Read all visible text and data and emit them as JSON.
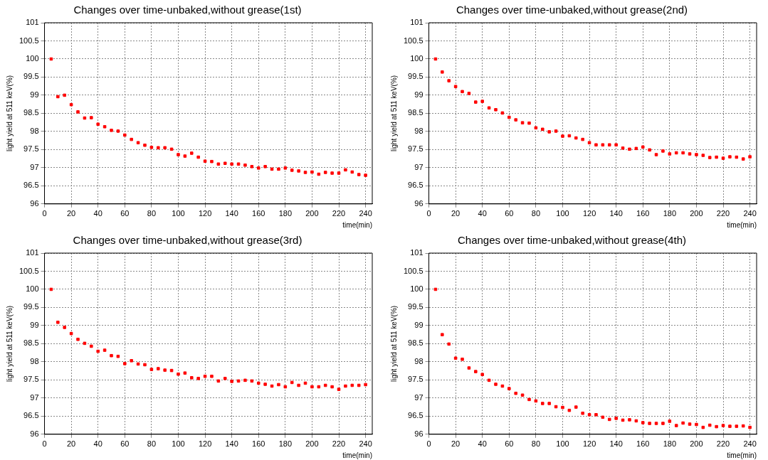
{
  "chart_data": [
    {
      "type": "scatter",
      "title": "Changes over time-unbaked,without grease(1st)",
      "xlabel": "time(min)",
      "ylabel": "light yield at 511 keV(%)",
      "xlim": [
        0,
        245
      ],
      "ylim": [
        96,
        101
      ],
      "xticks": [
        0,
        20,
        40,
        60,
        80,
        100,
        120,
        140,
        160,
        180,
        200,
        220,
        240
      ],
      "yticks": [
        96,
        96.5,
        97,
        97.5,
        98,
        98.5,
        99,
        99.5,
        100,
        100.5,
        101
      ],
      "grid": true,
      "legend": false,
      "marker": "square",
      "x": [
        5,
        10,
        15,
        20,
        25,
        30,
        35,
        40,
        45,
        50,
        55,
        60,
        65,
        70,
        75,
        80,
        85,
        90,
        95,
        100,
        105,
        110,
        115,
        120,
        125,
        130,
        135,
        140,
        145,
        150,
        155,
        160,
        165,
        170,
        175,
        180,
        185,
        190,
        195,
        200,
        205,
        210,
        215,
        220,
        225,
        230,
        235,
        240
      ],
      "series": [
        {
          "color": "#ff0000",
          "values": [
            100,
            98.96,
            99,
            98.74,
            98.54,
            98.37,
            98.38,
            98.2,
            98.13,
            98.03,
            98.01,
            97.9,
            97.78,
            97.69,
            97.62,
            97.56,
            97.55,
            97.55,
            97.51,
            97.36,
            97.32,
            97.4,
            97.29,
            97.18,
            97.17,
            97.1,
            97.12,
            97.1,
            97.1,
            97.07,
            97.03,
            96.99,
            97.03,
            96.96,
            96.96,
            96.99,
            96.93,
            96.91,
            96.87,
            96.88,
            96.82,
            96.87,
            96.85,
            96.85,
            96.94,
            96.88,
            96.81,
            96.79
          ]
        }
      ]
    },
    {
      "type": "scatter",
      "title": "Changes over time-unbaked,without grease(2nd)",
      "xlabel": "time(min)",
      "ylabel": "light yield at 511 keV(%)",
      "xlim": [
        0,
        245
      ],
      "ylim": [
        96,
        101
      ],
      "xticks": [
        0,
        20,
        40,
        60,
        80,
        100,
        120,
        140,
        160,
        180,
        200,
        220,
        240
      ],
      "yticks": [
        96,
        96.5,
        97,
        97.5,
        98,
        98.5,
        99,
        99.5,
        100,
        100.5,
        101
      ],
      "grid": true,
      "legend": false,
      "marker": "square",
      "x": [
        5,
        10,
        15,
        20,
        25,
        30,
        35,
        40,
        45,
        50,
        55,
        60,
        65,
        70,
        75,
        80,
        85,
        90,
        95,
        100,
        105,
        110,
        115,
        120,
        125,
        130,
        135,
        140,
        145,
        150,
        155,
        160,
        165,
        170,
        175,
        180,
        185,
        190,
        195,
        200,
        205,
        210,
        215,
        220,
        225,
        230,
        235,
        240
      ],
      "series": [
        {
          "color": "#ff0000",
          "values": [
            100,
            99.64,
            99.4,
            99.24,
            99.1,
            99.05,
            98.81,
            98.83,
            98.65,
            98.6,
            98.51,
            98.39,
            98.32,
            98.24,
            98.23,
            98.1,
            98.06,
            97.99,
            98.01,
            97.87,
            97.88,
            97.82,
            97.78,
            97.69,
            97.63,
            97.63,
            97.63,
            97.63,
            97.54,
            97.51,
            97.53,
            97.57,
            97.49,
            97.36,
            97.46,
            97.38,
            97.41,
            97.41,
            97.38,
            97.36,
            97.34,
            97.28,
            97.29,
            97.26,
            97.3,
            97.29,
            97.24,
            97.3
          ]
        }
      ]
    },
    {
      "type": "scatter",
      "title": "Changes over time-unbaked,without grease(3rd)",
      "xlabel": "time(min)",
      "ylabel": "light yield at 511 keV(%)",
      "xlim": [
        0,
        245
      ],
      "ylim": [
        96,
        101
      ],
      "xticks": [
        0,
        20,
        40,
        60,
        80,
        100,
        120,
        140,
        160,
        180,
        200,
        220,
        240
      ],
      "yticks": [
        96,
        96.5,
        97,
        97.5,
        98,
        98.5,
        99,
        99.5,
        100,
        100.5,
        101
      ],
      "grid": true,
      "legend": false,
      "marker": "square",
      "x": [
        5,
        10,
        15,
        20,
        25,
        30,
        35,
        40,
        45,
        50,
        55,
        60,
        65,
        70,
        75,
        80,
        85,
        90,
        95,
        100,
        105,
        110,
        115,
        120,
        125,
        130,
        135,
        140,
        145,
        150,
        155,
        160,
        165,
        170,
        175,
        180,
        185,
        190,
        195,
        200,
        205,
        210,
        215,
        220,
        225,
        230,
        235,
        240
      ],
      "series": [
        {
          "color": "#ff0000",
          "values": [
            100,
            99.09,
            98.95,
            98.78,
            98.62,
            98.51,
            98.43,
            98.29,
            98.32,
            98.17,
            98.15,
            97.95,
            98.03,
            97.94,
            97.92,
            97.79,
            97.81,
            97.77,
            97.76,
            97.66,
            97.69,
            97.56,
            97.54,
            97.6,
            97.6,
            97.47,
            97.54,
            97.46,
            97.47,
            97.49,
            97.47,
            97.41,
            97.38,
            97.33,
            97.37,
            97.31,
            97.43,
            97.35,
            97.41,
            97.31,
            97.31,
            97.35,
            97.31,
            97.24,
            97.33,
            97.35,
            97.35,
            97.37
          ]
        }
      ]
    },
    {
      "type": "scatter",
      "title": "Changes over time-unbaked,without grease(4th)",
      "xlabel": "time(min)",
      "ylabel": "light yield at 511 keV(%)",
      "xlim": [
        0,
        245
      ],
      "ylim": [
        96,
        101
      ],
      "xticks": [
        0,
        20,
        40,
        60,
        80,
        100,
        120,
        140,
        160,
        180,
        200,
        220,
        240
      ],
      "yticks": [
        96,
        96.5,
        97,
        97.5,
        98,
        98.5,
        99,
        99.5,
        100,
        100.5,
        101
      ],
      "grid": true,
      "legend": false,
      "marker": "square",
      "x": [
        5,
        10,
        15,
        20,
        25,
        30,
        35,
        40,
        45,
        50,
        55,
        60,
        65,
        70,
        75,
        80,
        85,
        90,
        95,
        100,
        105,
        110,
        115,
        120,
        125,
        130,
        135,
        140,
        145,
        150,
        155,
        160,
        165,
        170,
        175,
        180,
        185,
        190,
        195,
        200,
        205,
        210,
        215,
        220,
        225,
        230,
        235,
        240
      ],
      "series": [
        {
          "color": "#ff0000",
          "values": [
            100,
            98.75,
            98.49,
            98.1,
            98.07,
            97.83,
            97.73,
            97.65,
            97.49,
            97.38,
            97.33,
            97.26,
            97.13,
            97.08,
            96.96,
            96.92,
            96.85,
            96.85,
            96.76,
            96.74,
            96.66,
            96.75,
            96.58,
            96.54,
            96.54,
            96.47,
            96.41,
            96.44,
            96.39,
            96.4,
            96.37,
            96.32,
            96.3,
            96.3,
            96.3,
            96.36,
            96.24,
            96.31,
            96.28,
            96.27,
            96.19,
            96.25,
            96.21,
            96.24,
            96.22,
            96.22,
            96.23,
            96.19
          ]
        }
      ]
    }
  ]
}
